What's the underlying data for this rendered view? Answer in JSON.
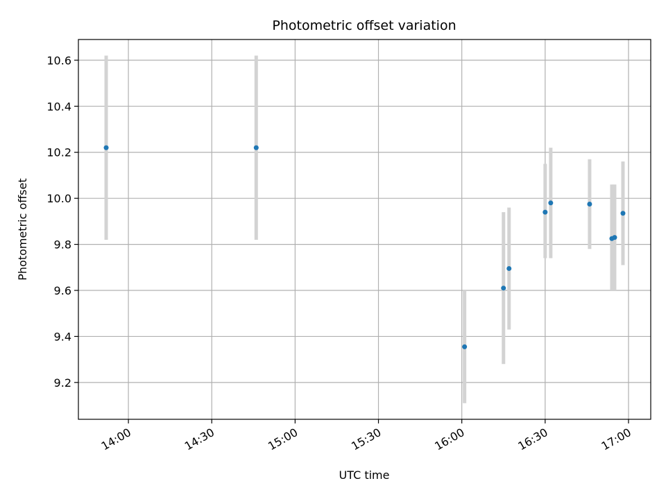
{
  "chart_data": {
    "type": "scatter",
    "title": "Photometric offset variation",
    "xlabel": "UTC time",
    "ylabel": "Photometric offset",
    "x_axis_type": "time",
    "xlim": [
      "13:42",
      "17:08"
    ],
    "ylim": [
      9.04,
      10.69
    ],
    "x_ticks": [
      "14:00",
      "14:30",
      "15:00",
      "15:30",
      "16:00",
      "16:30",
      "17:00"
    ],
    "y_ticks": [
      9.2,
      9.4,
      9.6,
      9.8,
      10.0,
      10.2,
      10.4,
      10.6
    ],
    "grid": true,
    "point_color": "#1f77b4",
    "errorbar_color": "#d3d3d3",
    "points": [
      {
        "x": "13:52",
        "y": 10.22,
        "y_low": 9.82,
        "y_high": 10.62
      },
      {
        "x": "14:46",
        "y": 10.22,
        "y_low": 9.82,
        "y_high": 10.62
      },
      {
        "x": "16:01",
        "y": 9.355,
        "y_low": 9.11,
        "y_high": 9.6
      },
      {
        "x": "16:15",
        "y": 9.61,
        "y_low": 9.28,
        "y_high": 9.94
      },
      {
        "x": "16:17",
        "y": 9.695,
        "y_low": 9.43,
        "y_high": 9.96
      },
      {
        "x": "16:30",
        "y": 9.94,
        "y_low": 9.74,
        "y_high": 10.15
      },
      {
        "x": "16:32",
        "y": 9.98,
        "y_low": 9.74,
        "y_high": 10.22
      },
      {
        "x": "16:46",
        "y": 9.975,
        "y_low": 9.78,
        "y_high": 10.17
      },
      {
        "x": "16:54",
        "y": 9.825,
        "y_low": 9.6,
        "y_high": 10.06
      },
      {
        "x": "16:55",
        "y": 9.83,
        "y_low": 9.6,
        "y_high": 10.06
      },
      {
        "x": "16:58",
        "y": 9.935,
        "y_low": 9.71,
        "y_high": 10.16
      }
    ]
  }
}
